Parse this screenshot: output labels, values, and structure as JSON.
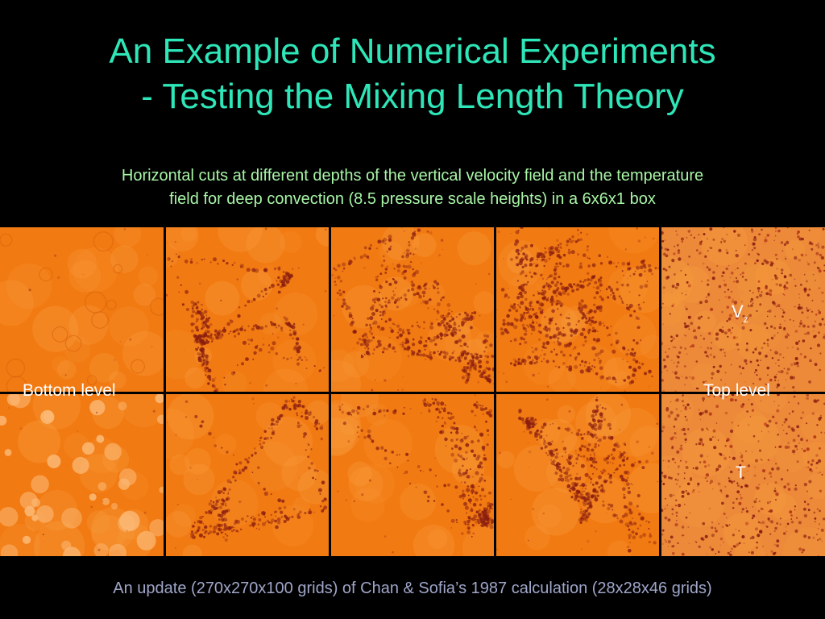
{
  "slide": {
    "title_line1": "An Example of Numerical Experiments",
    "title_line2": "- Testing the Mixing Length Theory",
    "subtitle_line1": "Horizontal cuts at different depths of the vertical velocity field and the temperature",
    "subtitle_line2": "field for deep convection (8.5 pressure scale heights) in a 6x6x1 box",
    "labels": {
      "bottom": "Bottom level",
      "top": "Top level",
      "vz_main": "V",
      "vz_sub": "z",
      "t": "T"
    },
    "footer": "An update (270x270x100 grids) of Chan & Sofia’s 1987 calculation (28x28x46 grids)"
  },
  "colors": {
    "title": "#2ee6b8",
    "subtitle": "#a8f5a6",
    "footer": "#9fa6c9",
    "panel_base": "#f27a12",
    "panel_dark": "#8a1e10"
  }
}
